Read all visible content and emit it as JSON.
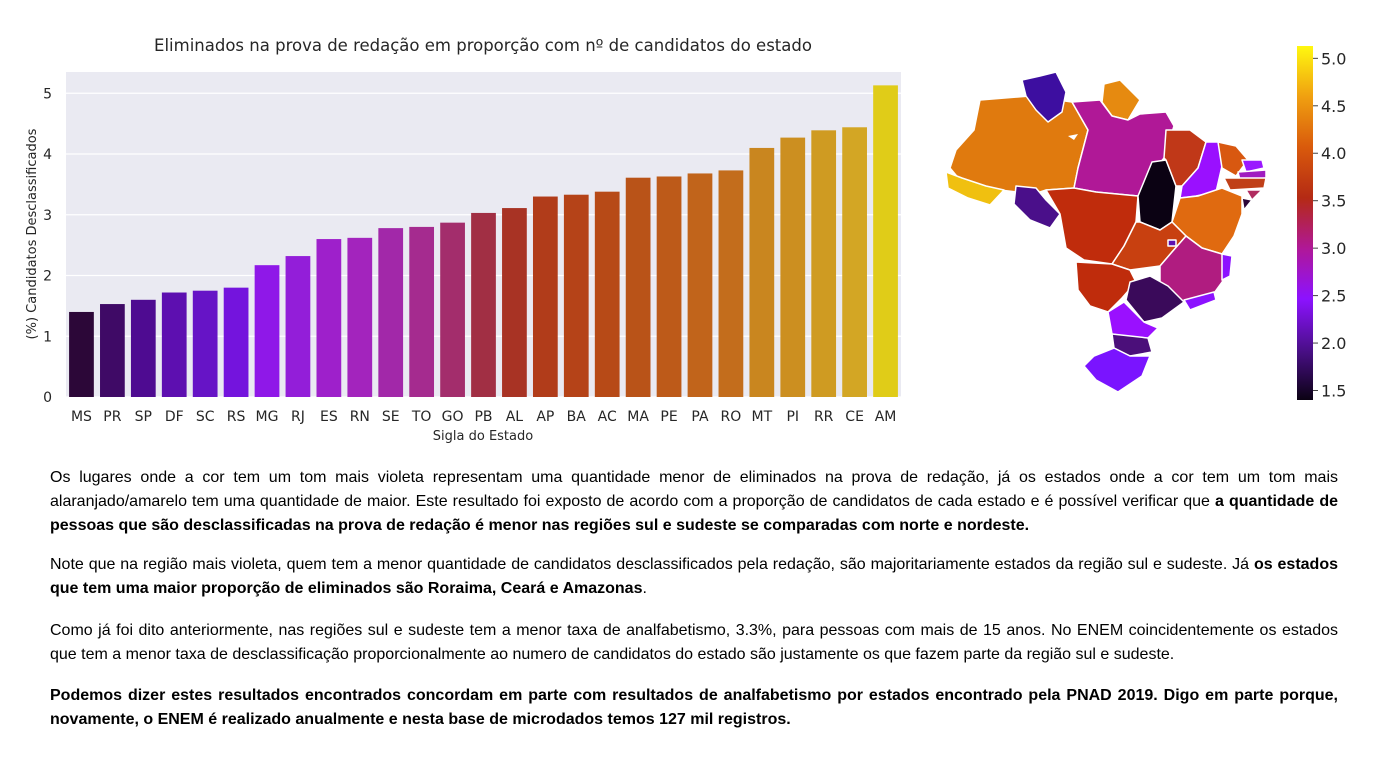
{
  "chart_data": {
    "type": "bar",
    "title": "Eliminados na prova de redação em proporção com nº de candidatos do estado",
    "xlabel": "Sigla do Estado",
    "ylabel": "(%) Candidatos Desclassificados",
    "ylim": [
      0,
      5.35
    ],
    "yticks": [
      "0",
      "1",
      "2",
      "3",
      "4",
      "5"
    ],
    "grid": true,
    "categories": [
      "MS",
      "PR",
      "SP",
      "DF",
      "SC",
      "RS",
      "MG",
      "RJ",
      "ES",
      "RN",
      "SE",
      "TO",
      "GO",
      "PB",
      "AL",
      "AP",
      "BA",
      "AC",
      "MA",
      "PE",
      "PA",
      "RO",
      "MT",
      "PI",
      "RR",
      "CE",
      "AM"
    ],
    "values": [
      1.4,
      1.53,
      1.6,
      1.72,
      1.75,
      1.8,
      2.17,
      2.32,
      2.6,
      2.62,
      2.78,
      2.8,
      2.87,
      3.03,
      3.11,
      3.3,
      3.33,
      3.38,
      3.61,
      3.63,
      3.68,
      3.73,
      4.1,
      4.27,
      4.39,
      4.44,
      5.13
    ],
    "colors": [
      "#2c0738",
      "#3f0a66",
      "#4e0b91",
      "#5d0fb0",
      "#6614c6",
      "#7414dd",
      "#8f18e8",
      "#931ed9",
      "#9e20cb",
      "#a324bd",
      "#a228a9",
      "#a52b8f",
      "#a32d6c",
      "#a12f44",
      "#a83324",
      "#b13c1a",
      "#b54318",
      "#b74a17",
      "#b95318",
      "#bd5a19",
      "#c1641b",
      "#c36d1c",
      "#c9861f",
      "#cc8f20",
      "#cf9b22",
      "#d3a624",
      "#e0cc18"
    ]
  },
  "map": {
    "colorbar": {
      "ticks": [
        "5.0",
        "4.5",
        "4.0",
        "3.5",
        "3.0",
        "2.5",
        "2.0",
        "1.5"
      ],
      "range": [
        1.4,
        5.13
      ],
      "stops": [
        "#0b0213",
        "#4b0f8a",
        "#8c12ff",
        "#b01897",
        "#b42a14",
        "#d95a0c",
        "#f0a010",
        "#fff810"
      ]
    }
  },
  "paragraphs": {
    "p1_a": "Os lugares onde a cor tem um tom mais violeta representam uma quantidade menor de eliminados na prova de redação, já os estados onde a cor tem um tom mais alaranjado/amarelo tem uma quantidade de maior. Este resultado foi exposto de acordo com a proporção de candidatos de cada estado e é possível verificar que ",
    "p1_b": "a quantidade de pessoas que são desclassificadas na prova de redação é menor nas regiões sul e sudeste se comparadas com norte e nordeste.",
    "p2_a": "Note que na região mais violeta, quem tem a menor quantidade de candidatos desclassificados pela redação, são majoritariamente estados da região sul e sudeste. Já ",
    "p2_b": "os estados que tem uma maior proporção de eliminados são Roraima, Ceará e Amazonas",
    "p2_c": ".",
    "p3": "Como já foi dito anteriormente, nas regiões sul e sudeste tem a menor taxa de analfabetismo, 3.3%, para pessoas com mais de 15 anos. No ENEM coincidentemente os estados que tem a menor taxa de desclassificação proporcionalmente ao numero de candidatos do estado são justamente os que fazem parte da região sul e sudeste.",
    "p4": "Podemos dizer estes resultados encontrados concordam em parte com resultados de analfabetismo por estados encontrado pela PNAD 2019. Digo em parte porque, novamente, o ENEM é realizado anualmente e nesta base de microdados temos 127 mil registros."
  }
}
